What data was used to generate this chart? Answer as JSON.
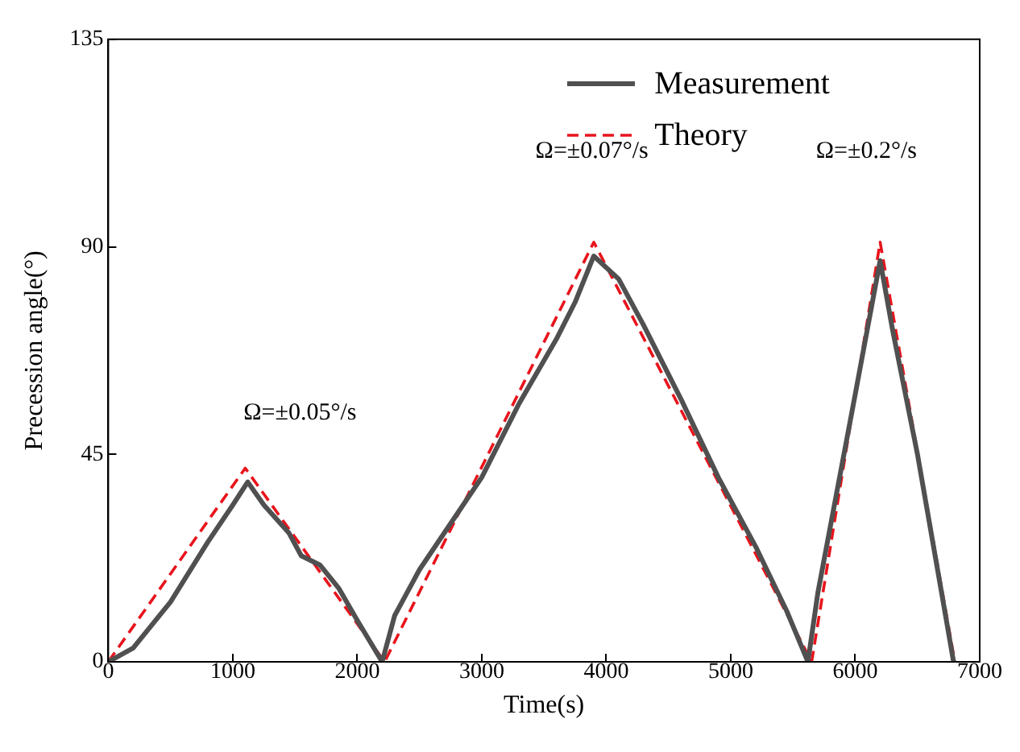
{
  "chart_data": {
    "type": "line",
    "xlabel": "Time(s)",
    "ylabel": "Precession angle(°)",
    "xlim": [
      0,
      7000
    ],
    "xticks": [
      0,
      1000,
      2000,
      3000,
      4000,
      5000,
      6000,
      7000
    ],
    "ylim": [
      0,
      135
    ],
    "yticks": [
      0,
      45,
      90,
      135
    ],
    "grid": false,
    "legend": "top right",
    "marker": "none",
    "series": [
      {
        "name": "Measurement",
        "color": "#505050",
        "line_style": "solid",
        "x": [
          0,
          200,
          500,
          800,
          1000,
          1120,
          1250,
          1450,
          1550,
          1700,
          1850,
          2000,
          2200,
          2300,
          2500,
          2800,
          3000,
          3300,
          3600,
          3750,
          3900,
          4100,
          4300,
          4600,
          4900,
          5200,
          5450,
          5620,
          5700,
          6000,
          6200,
          6300,
          6500,
          6700,
          6790
        ],
        "values": [
          0,
          3,
          13,
          26,
          34,
          39,
          34,
          28,
          23,
          21,
          16,
          9,
          0,
          10,
          20,
          32,
          40,
          56,
          70,
          78,
          88,
          83,
          73,
          57,
          40,
          25,
          11,
          0,
          15,
          58,
          87,
          72,
          45,
          14,
          0
        ]
      },
      {
        "name": "Theory",
        "color": "#e8141c",
        "line_style": "dashed",
        "x": [
          0,
          1100,
          2220,
          3900,
          5650,
          6200,
          6800
        ],
        "values": [
          0,
          42,
          0,
          91,
          0,
          91,
          0
        ]
      }
    ],
    "annotations": [
      "Ω=±0.05°/s",
      "Ω=±0.07°/s",
      "Ω=±0.2°/s"
    ]
  }
}
